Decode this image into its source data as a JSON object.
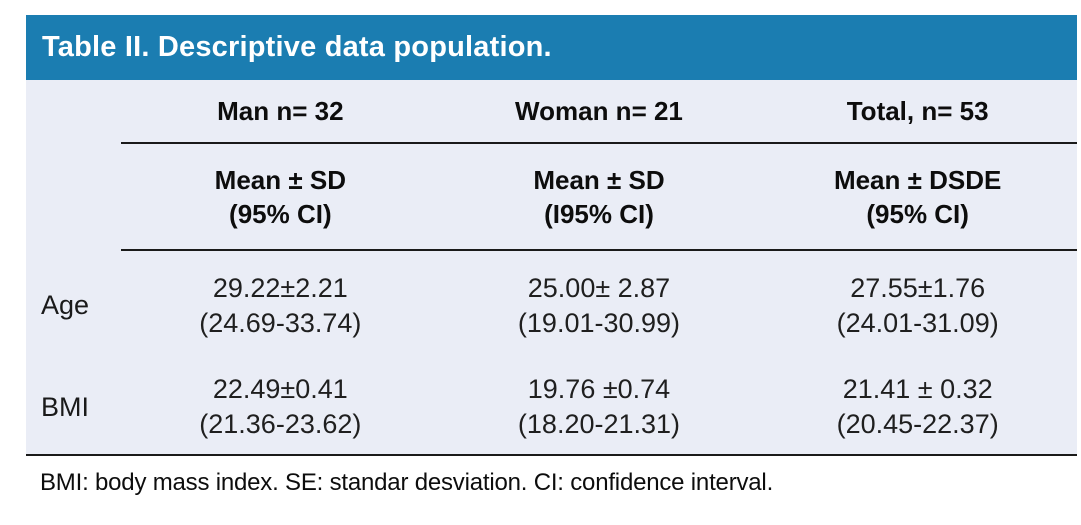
{
  "title": "Table II. Descriptive data population.",
  "colors": {
    "header_bar_bg": "#1b7db1",
    "title_text": "#ffffff",
    "table_body_bg": "#eaedf6",
    "rule_line": "#1a1a1a"
  },
  "table": {
    "group_headers": [
      "Man n= 32",
      "Woman n= 21",
      "Total, n= 53"
    ],
    "subheaders": [
      {
        "line1": "Mean ± SD",
        "line2": "(95% CI)"
      },
      {
        "line1": "Mean ± SD",
        "line2": "(I95% CI)"
      },
      {
        "line1": "Mean ± DSDE",
        "line2": "(95% CI)"
      }
    ],
    "rows": [
      {
        "label": "Age",
        "cells": [
          {
            "mean": "29.22±2.21",
            "ci": "(24.69-33.74)"
          },
          {
            "mean": "25.00± 2.87",
            "ci": "(19.01-30.99)"
          },
          {
            "mean": "27.55±1.76",
            "ci": "(24.01-31.09)"
          }
        ]
      },
      {
        "label": "BMI",
        "cells": [
          {
            "mean": "22.49±0.41",
            "ci": "(21.36-23.62)"
          },
          {
            "mean": "19.76 ±0.74",
            "ci": "(18.20-21.31)"
          },
          {
            "mean": "21.41 ± 0.32",
            "ci": "(20.45-22.37)"
          }
        ]
      }
    ]
  },
  "footnote": "BMI: body mass index. SE: standar desviation. CI: confidence interval.",
  "chart_data": {
    "type": "table",
    "title": "Table II. Descriptive data population.",
    "columns": [
      "Man n= 32",
      "Woman n= 21",
      "Total, n= 53"
    ],
    "column_stat_labels": [
      "Mean ± SD (95% CI)",
      "Mean ± SD (I95% CI)",
      "Mean ± DSDE (95% CI)"
    ],
    "group_n": {
      "man": 32,
      "woman": 21,
      "total": 53
    },
    "rows": [
      {
        "variable": "Age",
        "man": {
          "mean": 29.22,
          "sd": 2.21,
          "ci95": [
            24.69,
            33.74
          ]
        },
        "woman": {
          "mean": 25.0,
          "sd": 2.87,
          "ci95": [
            19.01,
            30.99
          ]
        },
        "total": {
          "mean": 27.55,
          "sd": 1.76,
          "ci95": [
            24.01,
            31.09
          ]
        }
      },
      {
        "variable": "BMI",
        "man": {
          "mean": 22.49,
          "sd": 0.41,
          "ci95": [
            21.36,
            23.62
          ]
        },
        "woman": {
          "mean": 19.76,
          "sd": 0.74,
          "ci95": [
            18.2,
            21.31
          ]
        },
        "total": {
          "mean": 21.41,
          "sd": 0.32,
          "ci95": [
            20.45,
            22.37
          ]
        }
      }
    ],
    "footnote": "BMI: body mass index. SE: standar desviation. CI: confidence interval."
  }
}
